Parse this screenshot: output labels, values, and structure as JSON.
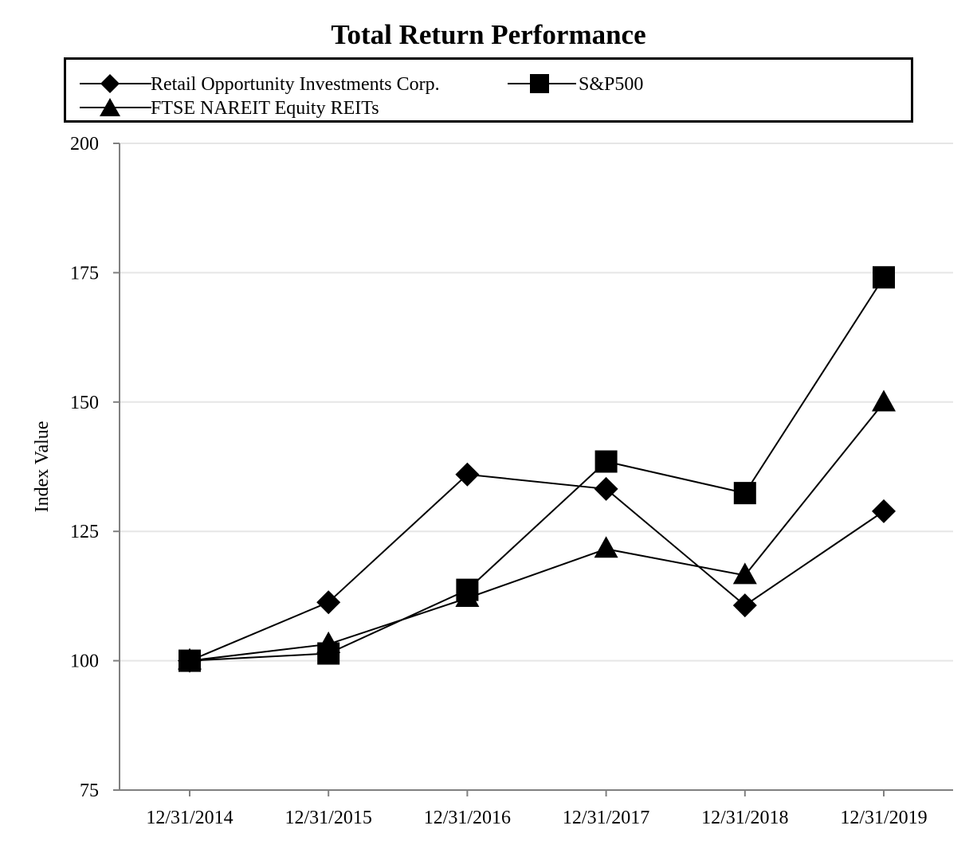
{
  "chart_data": {
    "type": "line",
    "title": "Total Return Performance",
    "xlabel": "",
    "ylabel": "Index Value",
    "categories": [
      "12/31/2014",
      "12/31/2015",
      "12/31/2016",
      "12/31/2017",
      "12/31/2018",
      "12/31/2019"
    ],
    "ylim": [
      75,
      200
    ],
    "yticks": [
      75,
      100,
      125,
      150,
      175,
      200
    ],
    "grid": "horizontal",
    "legend_position": "top",
    "series": [
      {
        "name": "Retail Opportunity Investments Corp.",
        "marker": "diamond",
        "values": [
          100,
          111.3,
          136.0,
          133.2,
          110.7,
          128.9
        ]
      },
      {
        "name": "S&P500",
        "marker": "square",
        "values": [
          100,
          101.4,
          113.7,
          138.5,
          132.4,
          174.1
        ]
      },
      {
        "name": "FTSE NAREIT Equity REITs",
        "marker": "triangle",
        "values": [
          100,
          103.2,
          112.1,
          121.6,
          116.5,
          149.9
        ]
      }
    ],
    "colors": {
      "line": "#000000",
      "grid": "#e6e6e6",
      "axis": "#808080"
    }
  }
}
